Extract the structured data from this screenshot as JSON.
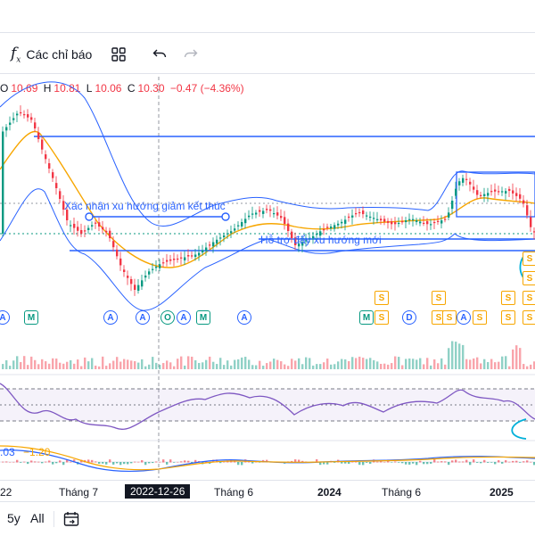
{
  "toolbar": {
    "indicators_label": "Các chỉ báo"
  },
  "legend": {
    "o_key": "O",
    "o_val": "10.69",
    "h_key": "H",
    "h_val": "10.81",
    "l_key": "L",
    "l_val": "10.06",
    "c_key": "C",
    "c_val": "10.30",
    "change": "−0.47 (−4.36%)"
  },
  "annotations": {
    "line1": "Xác nhận xu hướng giảm kết thúc",
    "line2": "Hỗ trợ đẩy xu hướng mới"
  },
  "macd_readout": {
    "v1": ".03",
    "v2": "−1.20"
  },
  "time_axis": {
    "labels": [
      "22",
      "Tháng 7",
      "2022-12-26",
      "Tháng 6",
      "2024",
      "Tháng 6",
      "2025"
    ]
  },
  "markers": {
    "a": "A",
    "m": "M",
    "o": "O",
    "d": "D",
    "s": "S"
  },
  "ranges": {
    "r5y": "5y",
    "rall": "All"
  },
  "colors": {
    "up": "#089981",
    "down": "#f23645",
    "blue": "#2962ff",
    "orange": "#f7a600",
    "rsi": "#7e57c2",
    "band": "#2962ff"
  },
  "icons": [
    "fx-icon",
    "layout-icon",
    "undo-icon",
    "redo-icon",
    "calendar-range-icon"
  ]
}
